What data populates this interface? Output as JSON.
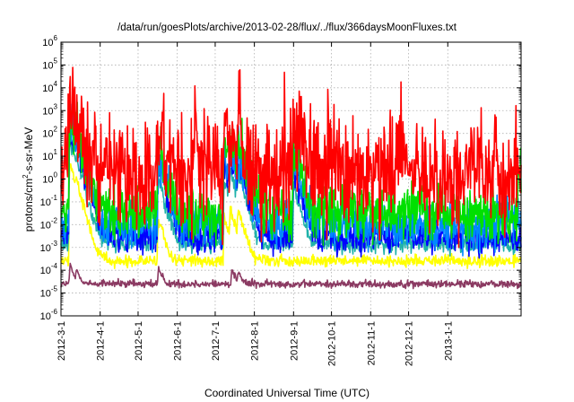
{
  "chart_data": {
    "type": "line",
    "title": "/data/run/goesPlots/archive/2013-02-28/flux/../flux/366daysMoonFluxes.txt",
    "xlabel": "Coordinated Universal Time (UTC)",
    "ylabel_parts": [
      "protons/cm",
      "2",
      "-s-sr-MeV"
    ],
    "yscale": "log",
    "ylim_exponents": [
      -6,
      6
    ],
    "y_tick_base": "10",
    "y_tick_exponents": [
      "-6",
      "-5",
      "-4",
      "-3",
      "-2",
      "-1",
      "0",
      "1",
      "2",
      "3",
      "4",
      "5",
      "6"
    ],
    "xlim": [
      "2012-03-01",
      "2013-02-28"
    ],
    "x_tick_labels": [
      "2012-3-1",
      "2012-4-1",
      "2012-5-1",
      "2012-6-1",
      "2012-7-1",
      "2012-8-1",
      "2012-9-1",
      "2012-10-1",
      "2012-11-1",
      "2012-12-1",
      "2013-1-1"
    ],
    "x_tick_dates": [
      "2012-03-01",
      "2012-04-01",
      "2012-05-01",
      "2012-06-01",
      "2012-07-01",
      "2012-08-01",
      "2012-09-01",
      "2012-10-01",
      "2012-11-01",
      "2012-12-01",
      "2013-01-01"
    ],
    "grid": true,
    "series": [
      {
        "color": "#8b3a62",
        "baseline": 2.5e-05,
        "spike_factor": 0.08,
        "events": [
          {
            "date": "2012-03-08",
            "peak": 0.00015
          },
          {
            "date": "2012-03-13",
            "peak": 8e-05
          },
          {
            "date": "2012-05-17",
            "peak": 0.0001
          },
          {
            "date": "2012-07-14",
            "peak": 0.0001
          },
          {
            "date": "2012-07-19",
            "peak": 6e-05
          }
        ]
      },
      {
        "color": "#ffff00",
        "baseline": 0.00025,
        "spike_factor": 0.12,
        "events": [
          {
            "date": "2012-03-08",
            "peak": 5
          },
          {
            "date": "2012-03-13",
            "peak": 0.5
          },
          {
            "date": "2012-05-17",
            "peak": 0.02
          },
          {
            "date": "2012-07-08",
            "peak": 0.02
          },
          {
            "date": "2012-07-13",
            "peak": 0.05
          },
          {
            "date": "2012-07-19",
            "peak": 0.05
          }
        ]
      },
      {
        "color": "#20b2aa",
        "baseline": 0.0015,
        "spike_factor": 0.2,
        "events": [
          {
            "date": "2012-03-08",
            "peak": 50
          },
          {
            "date": "2012-03-13",
            "peak": 5
          },
          {
            "date": "2012-05-17",
            "peak": 1
          },
          {
            "date": "2012-07-08",
            "peak": 1
          },
          {
            "date": "2012-07-13",
            "peak": 2
          },
          {
            "date": "2012-07-19",
            "peak": 2
          },
          {
            "date": "2012-09-01",
            "peak": 0.5
          }
        ]
      },
      {
        "color": "#0000ff",
        "baseline": 0.003,
        "spike_factor": 0.35,
        "events": [
          {
            "date": "2012-03-08",
            "peak": 200
          },
          {
            "date": "2012-03-13",
            "peak": 20
          },
          {
            "date": "2012-05-17",
            "peak": 5
          },
          {
            "date": "2012-07-08",
            "peak": 5
          },
          {
            "date": "2012-07-13",
            "peak": 10
          },
          {
            "date": "2012-07-19",
            "peak": 10
          },
          {
            "date": "2012-09-01",
            "peak": 3
          }
        ]
      },
      {
        "color": "#0088ff",
        "baseline": 0.01,
        "spike_factor": 0.5,
        "events": [
          {
            "date": "2012-03-08",
            "peak": 500
          },
          {
            "date": "2012-03-13",
            "peak": 50
          },
          {
            "date": "2012-05-17",
            "peak": 10
          },
          {
            "date": "2012-07-08",
            "peak": 10
          },
          {
            "date": "2012-07-13",
            "peak": 20
          },
          {
            "date": "2012-07-19",
            "peak": 20
          },
          {
            "date": "2012-09-01",
            "peak": 8
          }
        ]
      },
      {
        "color": "#00e000",
        "baseline": 0.03,
        "spike_factor": 0.6,
        "events": [
          {
            "date": "2012-03-08",
            "peak": 1000
          },
          {
            "date": "2012-03-13",
            "peak": 100
          },
          {
            "date": "2012-05-17",
            "peak": 30
          },
          {
            "date": "2012-07-08",
            "peak": 50
          },
          {
            "date": "2012-07-13",
            "peak": 80
          },
          {
            "date": "2012-07-19",
            "peak": 100
          },
          {
            "date": "2012-09-01",
            "peak": 20
          },
          {
            "date": "2013-02-26",
            "peak": 2
          }
        ]
      },
      {
        "color": "#ff0000",
        "baseline": 1.5,
        "spike_factor": 1.2,
        "events": [
          {
            "date": "2012-03-07",
            "peak": 8000
          },
          {
            "date": "2012-03-13",
            "peak": 100
          },
          {
            "date": "2012-05-17",
            "peak": 200
          },
          {
            "date": "2012-06-15",
            "peak": 100
          },
          {
            "date": "2012-07-08",
            "peak": 200
          },
          {
            "date": "2012-07-13",
            "peak": 500
          },
          {
            "date": "2012-07-19",
            "peak": 300
          },
          {
            "date": "2012-09-01",
            "peak": 800
          },
          {
            "date": "2012-09-28",
            "peak": 20
          },
          {
            "date": "2012-11-21",
            "peak": 50
          },
          {
            "date": "2013-01-20",
            "peak": 30
          }
        ]
      }
    ]
  }
}
